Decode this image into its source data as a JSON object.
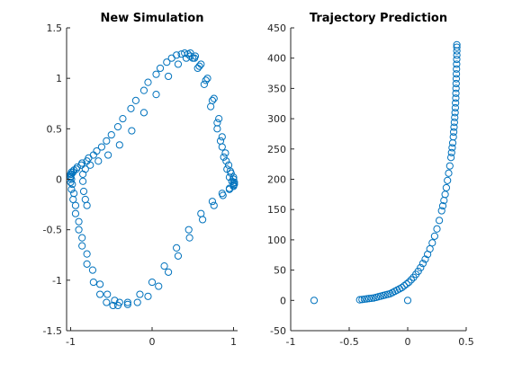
{
  "chart_data": [
    {
      "type": "scatter",
      "title": "New Simulation",
      "xlabel": "",
      "ylabel": "",
      "xlim": [
        -1.05,
        1.05
      ],
      "ylim": [
        -1.5,
        1.5
      ],
      "xticks": [
        -1,
        0,
        1
      ],
      "yticks": [
        -1.5,
        -1,
        -0.5,
        0,
        0.5,
        1,
        1.5
      ],
      "xtick_labels": [
        "-1",
        "0",
        "1"
      ],
      "ytick_labels": [
        "-1.5",
        "-1",
        "-0.5",
        "0",
        "0.5",
        "1",
        "1.5"
      ],
      "grid": false,
      "marker": "circle-open",
      "color": "#0072BD",
      "series": [
        {
          "x": [
            -0.8,
            -0.82,
            -0.84,
            -0.85,
            -0.85,
            -0.82,
            -0.76,
            -0.66,
            -0.54,
            -0.4,
            -0.25,
            -0.1,
            0.05,
            0.2,
            0.32,
            0.42,
            0.47,
            0.52,
            0.58,
            0.66,
            0.74,
            0.8,
            0.84,
            0.88,
            0.92,
            0.95,
            0.98,
            1.0,
            1.01,
            1.0,
            0.95,
            0.87,
            0.76,
            0.62,
            0.46,
            0.32,
            0.2,
            0.08,
            -0.05,
            -0.18,
            -0.3,
            -0.4,
            -0.46,
            -0.55,
            -0.64,
            -0.73,
            -0.8,
            -0.86,
            -0.9,
            -0.94,
            -0.96,
            -0.98,
            -0.99,
            -1.0,
            -1.0,
            -0.99,
            -0.96,
            -0.92,
            -0.86,
            -0.78,
            -0.68,
            -0.56,
            -0.42,
            -0.26,
            -0.1,
            0.05,
            0.18,
            0.3,
            0.4,
            0.47,
            0.53,
            0.6,
            0.68,
            0.76,
            0.82,
            0.86,
            0.9,
            0.94,
            0.97,
            1.0,
            1.01,
            1.0,
            0.95,
            0.86,
            0.74,
            0.6,
            0.45,
            0.3,
            0.15,
            0.0,
            -0.15,
            -0.3,
            -0.42,
            -0.48,
            -0.56,
            -0.64,
            -0.72,
            -0.8,
            -0.86,
            -0.9,
            -0.94,
            -0.97,
            -0.99,
            -1.0,
            -1.0,
            -0.99,
            -0.97,
            -0.93,
            -0.87,
            -0.8,
            -0.72,
            -0.62,
            -0.5,
            -0.36,
            -0.2,
            -0.05,
            0.1,
            0.24,
            0.36,
            0.44,
            0.5,
            0.56,
            0.64,
            0.72,
            0.8,
            0.86,
            0.91,
            0.96,
            1.0
          ],
          "y": [
            -0.26,
            -0.2,
            -0.12,
            -0.02,
            0.05,
            0.1,
            0.14,
            0.18,
            0.24,
            0.34,
            0.48,
            0.66,
            0.84,
            1.02,
            1.14,
            1.2,
            1.22,
            1.2,
            1.12,
            0.98,
            0.78,
            0.56,
            0.38,
            0.22,
            0.1,
            0.02,
            -0.02,
            -0.04,
            -0.05,
            -0.07,
            -0.1,
            -0.16,
            -0.26,
            -0.4,
            -0.58,
            -0.76,
            -0.92,
            -1.06,
            -1.16,
            -1.22,
            -1.24,
            -1.22,
            -1.2,
            -1.14,
            -1.04,
            -0.9,
            -0.74,
            -0.58,
            -0.42,
            -0.26,
            -0.14,
            -0.05,
            0.0,
            0.03,
            0.05,
            0.07,
            0.09,
            0.12,
            0.16,
            0.21,
            0.28,
            0.38,
            0.52,
            0.7,
            0.88,
            1.04,
            1.16,
            1.23,
            1.25,
            1.25,
            1.22,
            1.14,
            1.0,
            0.8,
            0.6,
            0.42,
            0.26,
            0.14,
            0.06,
            0.0,
            -0.03,
            -0.06,
            -0.09,
            -0.14,
            -0.22,
            -0.34,
            -0.5,
            -0.68,
            -0.86,
            -1.02,
            -1.14,
            -1.22,
            -1.25,
            -1.25,
            -1.22,
            -1.14,
            -1.02,
            -0.84,
            -0.66,
            -0.5,
            -0.34,
            -0.2,
            -0.1,
            -0.03,
            0.02,
            0.05,
            0.07,
            0.1,
            0.14,
            0.18,
            0.24,
            0.32,
            0.44,
            0.6,
            0.78,
            0.96,
            1.1,
            1.2,
            1.24,
            1.24,
            1.2,
            1.1,
            0.94,
            0.72,
            0.5,
            0.32,
            0.18,
            0.08,
            0.02
          ]
        }
      ]
    },
    {
      "type": "scatter",
      "title": "Trajectory Prediction",
      "xlabel": "",
      "ylabel": "",
      "xlim": [
        -1,
        0.5
      ],
      "ylim": [
        -50,
        450
      ],
      "xticks": [
        -1,
        -0.5,
        0,
        0.5
      ],
      "yticks": [
        -50,
        0,
        50,
        100,
        150,
        200,
        250,
        300,
        350,
        400,
        450
      ],
      "xtick_labels": [
        "-1",
        "-0.5",
        "0",
        "0.5"
      ],
      "ytick_labels": [
        "-50",
        "0",
        "50",
        "100",
        "150",
        "200",
        "250",
        "300",
        "350",
        "400",
        "450"
      ],
      "grid": false,
      "marker": "circle-open",
      "color": "#0072BD",
      "series": [
        {
          "x": [
            -0.8,
            0.0,
            -0.41,
            -0.39,
            -0.37,
            -0.35,
            -0.33,
            -0.31,
            -0.29,
            -0.27,
            -0.25,
            -0.23,
            -0.21,
            -0.19,
            -0.17,
            -0.15,
            -0.13,
            -0.11,
            -0.09,
            -0.07,
            -0.05,
            -0.03,
            -0.01,
            0.01,
            0.03,
            0.05,
            0.07,
            0.09,
            0.11,
            0.13,
            0.15,
            0.17,
            0.19,
            0.21,
            0.23,
            0.25,
            0.27,
            0.29,
            0.3,
            0.31,
            0.32,
            0.33,
            0.34,
            0.35,
            0.36,
            0.37,
            0.375,
            0.38,
            0.385,
            0.39,
            0.393,
            0.396,
            0.399,
            0.402,
            0.405,
            0.407,
            0.409,
            0.411,
            0.412,
            0.413,
            0.414,
            0.415,
            0.416,
            0.417,
            0.418,
            0.419,
            0.42,
            0.42,
            0.42,
            0.42
          ],
          "y": [
            0,
            0,
            1,
            1.5,
            2,
            2.5,
            3,
            3.5,
            4,
            5,
            6,
            7,
            8,
            9,
            10,
            11,
            13,
            15,
            17,
            19,
            21,
            24,
            27,
            30,
            34,
            38,
            43,
            48,
            54,
            61,
            68,
            76,
            85,
            95,
            106,
            118,
            132,
            148,
            156,
            165,
            175,
            186,
            198,
            210,
            222,
            236,
            244,
            252,
            260,
            270,
            278,
            286,
            294,
            302,
            310,
            318,
            326,
            334,
            342,
            350,
            358,
            366,
            374,
            382,
            390,
            398,
            405,
            412,
            418,
            422
          ]
        }
      ]
    }
  ]
}
